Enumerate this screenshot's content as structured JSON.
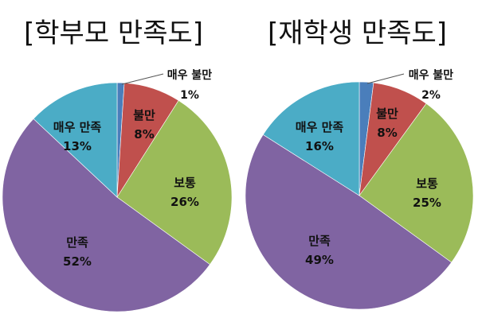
{
  "chart_data": [
    {
      "type": "pie",
      "title": "[학부모 만족도]",
      "categories": [
        "매우 불만",
        "불만",
        "보통",
        "만족",
        "매우 만족"
      ],
      "values": [
        1,
        8,
        26,
        52,
        13
      ],
      "labels": [
        "1%",
        "8%",
        "26%",
        "52%",
        "13%"
      ],
      "colors": [
        "#4a7ebb",
        "#c0504d",
        "#9bbb59",
        "#8064a2",
        "#4bacc6"
      ],
      "start_angle": "12 o'clock, clockwise",
      "legend": "none (data labels on slices)"
    },
    {
      "type": "pie",
      "title": "[재학생 만족도]",
      "categories": [
        "매우 불만",
        "불만",
        "보통",
        "만족",
        "매우 만족"
      ],
      "values": [
        2,
        8,
        25,
        49,
        16
      ],
      "labels": [
        "2%",
        "8%",
        "25%",
        "49%",
        "16%"
      ],
      "colors": [
        "#4a7ebb",
        "#c0504d",
        "#9bbb59",
        "#8064a2",
        "#4bacc6"
      ],
      "start_angle": "12 o'clock, clockwise",
      "legend": "none (data labels on slices)"
    }
  ]
}
